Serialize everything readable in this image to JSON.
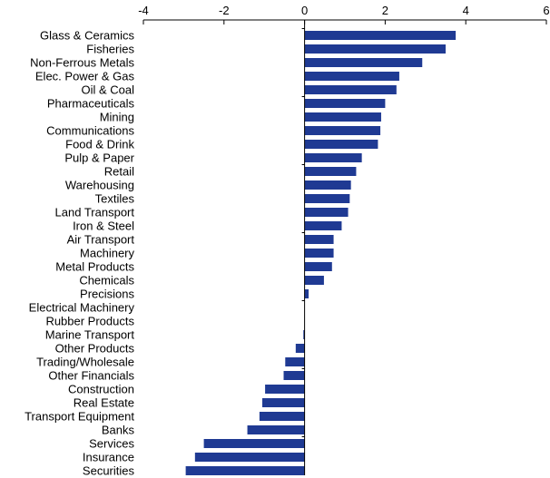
{
  "chart_data": {
    "type": "bar",
    "orientation": "horizontal",
    "title": "",
    "xlabel": "",
    "ylabel": "",
    "xlim": [
      -4,
      6
    ],
    "x_ticks": [
      "-4",
      "-2",
      "0",
      "2",
      "4",
      "6"
    ],
    "x_tick_values": [
      -4,
      -2,
      0,
      2,
      4,
      6
    ],
    "grid": false,
    "legend": "none",
    "bar_color": "#1f3a93",
    "categories": [
      "Glass & Ceramics",
      "Fisheries",
      "Non-Ferrous Metals",
      "Elec. Power & Gas",
      "Oil & Coal",
      "Pharmaceuticals",
      "Mining",
      "Communications",
      "Food & Drink",
      "Pulp & Paper",
      "Retail",
      "Warehousing",
      "Textiles",
      "Land Transport",
      "Iron & Steel",
      "Air Transport",
      "Machinery",
      "Metal Products",
      "Chemicals",
      "Precisions",
      "Electrical Machinery",
      "Rubber Products",
      "Marine Transport",
      "Other Products",
      "Trading/Wholesale",
      "Other Financials",
      "Construction",
      "Real Estate",
      "Transport Equipment",
      "Banks",
      "Services",
      "Insurance",
      "Securities"
    ],
    "values": [
      3.75,
      3.5,
      2.92,
      2.35,
      2.28,
      2.0,
      1.9,
      1.88,
      1.82,
      1.42,
      1.28,
      1.15,
      1.12,
      1.08,
      0.92,
      0.72,
      0.72,
      0.68,
      0.48,
      0.1,
      0.0,
      0.0,
      -0.03,
      -0.22,
      -0.48,
      -0.52,
      -0.98,
      -1.05,
      -1.12,
      -1.42,
      -2.5,
      -2.72,
      -2.95
    ]
  }
}
